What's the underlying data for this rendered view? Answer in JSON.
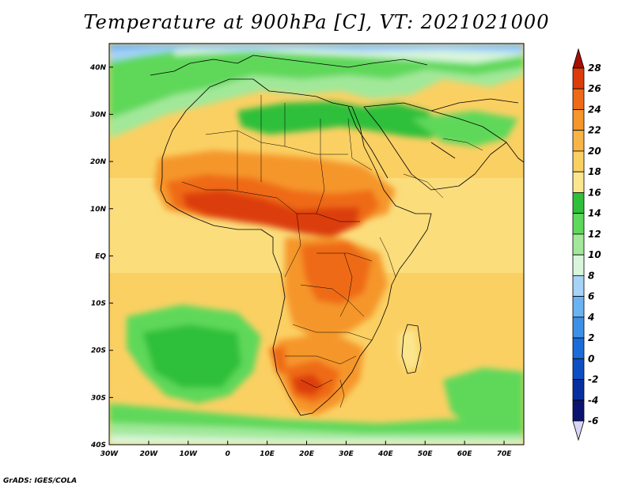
{
  "title": "Temperature at 900hPa [C], VT: 2021021000",
  "footer": "GrADS: IGES/COLA",
  "map": {
    "lon_range": [
      -30,
      75
    ],
    "lat_range": [
      -40,
      45
    ],
    "lon_labels": [
      {
        "lon": -30,
        "text": "30W"
      },
      {
        "lon": -20,
        "text": "20W"
      },
      {
        "lon": -10,
        "text": "10W"
      },
      {
        "lon": 0,
        "text": "0"
      },
      {
        "lon": 10,
        "text": "10E"
      },
      {
        "lon": 20,
        "text": "20E"
      },
      {
        "lon": 30,
        "text": "30E"
      },
      {
        "lon": 40,
        "text": "40E"
      },
      {
        "lon": 50,
        "text": "50E"
      },
      {
        "lon": 60,
        "text": "60E"
      },
      {
        "lon": 70,
        "text": "70E"
      }
    ],
    "lat_labels": [
      {
        "lat": 40,
        "text": "40N"
      },
      {
        "lat": 30,
        "text": "30N"
      },
      {
        "lat": 20,
        "text": "20N"
      },
      {
        "lat": 10,
        "text": "10N"
      },
      {
        "lat": 0,
        "text": "EQ"
      },
      {
        "lat": -10,
        "text": "10S"
      },
      {
        "lat": -20,
        "text": "20S"
      },
      {
        "lat": -30,
        "text": "30S"
      },
      {
        "lat": -40,
        "text": "40S"
      }
    ]
  },
  "colorbar": {
    "levels": [
      {
        "value": "28",
        "color": "#a50f00"
      },
      {
        "value": "26",
        "color": "#dc3c0a"
      },
      {
        "value": "24",
        "color": "#ef6a16"
      },
      {
        "value": "22",
        "color": "#f5962a"
      },
      {
        "value": "20",
        "color": "#f9b447"
      },
      {
        "value": "18",
        "color": "#fbd063"
      },
      {
        "value": "16",
        "color": "#fbe68e"
      },
      {
        "value": "14",
        "color": "#2fbf3a"
      },
      {
        "value": "12",
        "color": "#5ed85a"
      },
      {
        "value": "10",
        "color": "#a2e89a"
      },
      {
        "value": "8",
        "color": "#d9f6dc"
      },
      {
        "value": "6",
        "color": "#a6d3f8"
      },
      {
        "value": "4",
        "color": "#6ab3f2"
      },
      {
        "value": "2",
        "color": "#3d90e8"
      },
      {
        "value": "0",
        "color": "#1a6cd8"
      },
      {
        "value": "-2",
        "color": "#0c4fc4"
      },
      {
        "value": "-4",
        "color": "#082f9e"
      },
      {
        "value": "-6",
        "color": "#0a1470"
      }
    ],
    "top_triangle_color": "#a50f00",
    "bottom_triangle_color": "#d8d6f5"
  }
}
